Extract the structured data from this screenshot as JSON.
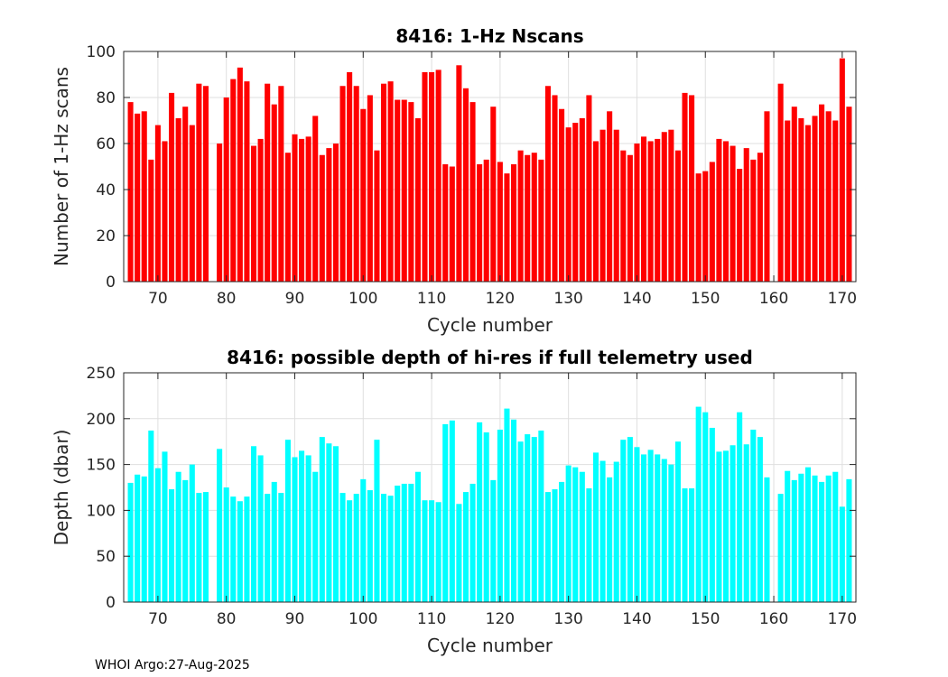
{
  "footer": "WHOI Argo:27-Aug-2025",
  "chart_data": [
    {
      "type": "bar",
      "title": "8416: 1-Hz Nscans",
      "xlabel": "Cycle number",
      "ylabel": "Number of 1-Hz scans",
      "xlim": [
        65,
        172
      ],
      "ylim": [
        0,
        100
      ],
      "xticks": [
        70,
        80,
        90,
        100,
        110,
        120,
        130,
        140,
        150,
        160,
        170
      ],
      "yticks": [
        0,
        20,
        40,
        60,
        80,
        100
      ],
      "grid": true,
      "color": "#ff0000",
      "x": [
        66,
        67,
        68,
        69,
        70,
        71,
        72,
        73,
        74,
        75,
        76,
        77,
        79,
        80,
        81,
        82,
        83,
        84,
        85,
        86,
        87,
        88,
        89,
        90,
        91,
        92,
        93,
        94,
        95,
        96,
        97,
        98,
        99,
        100,
        101,
        102,
        103,
        104,
        105,
        106,
        107,
        108,
        109,
        110,
        111,
        112,
        113,
        114,
        115,
        116,
        117,
        118,
        119,
        120,
        121,
        122,
        123,
        124,
        125,
        126,
        127,
        128,
        129,
        130,
        131,
        132,
        133,
        134,
        135,
        136,
        137,
        138,
        139,
        140,
        141,
        142,
        143,
        144,
        145,
        146,
        147,
        148,
        149,
        150,
        151,
        152,
        153,
        154,
        155,
        156,
        157,
        158,
        159,
        161,
        162,
        163,
        164,
        165,
        166,
        167,
        168,
        169,
        170,
        171
      ],
      "values": [
        78,
        73,
        74,
        53,
        68,
        61,
        82,
        71,
        76,
        68,
        86,
        85,
        60,
        80,
        88,
        93,
        87,
        59,
        62,
        86,
        77,
        85,
        56,
        64,
        62,
        63,
        72,
        55,
        58,
        60,
        85,
        91,
        85,
        75,
        81,
        57,
        86,
        87,
        79,
        79,
        78,
        71,
        91,
        91,
        92,
        51,
        50,
        94,
        84,
        78,
        51,
        53,
        76,
        52,
        47,
        51,
        57,
        55,
        56,
        53,
        85,
        81,
        75,
        67,
        69,
        71,
        81,
        61,
        66,
        74,
        66,
        57,
        55,
        60,
        63,
        61,
        62,
        65,
        66,
        57,
        82,
        81,
        47,
        48,
        52,
        62,
        61,
        59,
        49,
        58,
        53,
        56,
        74,
        86,
        70,
        76,
        71,
        68,
        72,
        77,
        74,
        70,
        97,
        76
      ]
    },
    {
      "type": "bar",
      "title": "8416: possible depth of hi-res if full telemetry used",
      "xlabel": "Cycle number",
      "ylabel": "Depth (dbar)",
      "xlim": [
        65,
        172
      ],
      "ylim": [
        0,
        250
      ],
      "xticks": [
        70,
        80,
        90,
        100,
        110,
        120,
        130,
        140,
        150,
        160,
        170
      ],
      "yticks": [
        0,
        50,
        100,
        150,
        200,
        250
      ],
      "grid": true,
      "color": "#00ffff",
      "x": [
        66,
        67,
        68,
        69,
        70,
        71,
        72,
        73,
        74,
        75,
        76,
        77,
        79,
        80,
        81,
        82,
        83,
        84,
        85,
        86,
        87,
        88,
        89,
        90,
        91,
        92,
        93,
        94,
        95,
        96,
        97,
        98,
        99,
        100,
        101,
        102,
        103,
        104,
        105,
        106,
        107,
        108,
        109,
        110,
        111,
        112,
        113,
        114,
        115,
        116,
        117,
        118,
        119,
        120,
        121,
        122,
        123,
        124,
        125,
        126,
        127,
        128,
        129,
        130,
        131,
        132,
        133,
        134,
        135,
        136,
        137,
        138,
        139,
        140,
        141,
        142,
        143,
        144,
        145,
        146,
        147,
        148,
        149,
        150,
        151,
        152,
        153,
        154,
        155,
        156,
        157,
        158,
        159,
        161,
        162,
        163,
        164,
        165,
        166,
        167,
        168,
        169,
        170,
        171
      ],
      "values": [
        130,
        139,
        137,
        187,
        146,
        164,
        123,
        142,
        133,
        150,
        119,
        120,
        167,
        125,
        115,
        110,
        115,
        170,
        160,
        118,
        131,
        119,
        177,
        158,
        165,
        160,
        142,
        180,
        173,
        170,
        119,
        111,
        118,
        134,
        122,
        177,
        118,
        116,
        127,
        129,
        129,
        142,
        111,
        111,
        109,
        194,
        198,
        107,
        120,
        129,
        196,
        185,
        133,
        188,
        211,
        199,
        175,
        183,
        180,
        187,
        120,
        123,
        131,
        149,
        147,
        142,
        124,
        163,
        154,
        136,
        153,
        177,
        180,
        169,
        161,
        166,
        161,
        156,
        150,
        175,
        124,
        124,
        213,
        207,
        190,
        164,
        165,
        171,
        207,
        172,
        188,
        180,
        136,
        118,
        143,
        133,
        140,
        147,
        138,
        131,
        138,
        142,
        104,
        134
      ]
    }
  ]
}
